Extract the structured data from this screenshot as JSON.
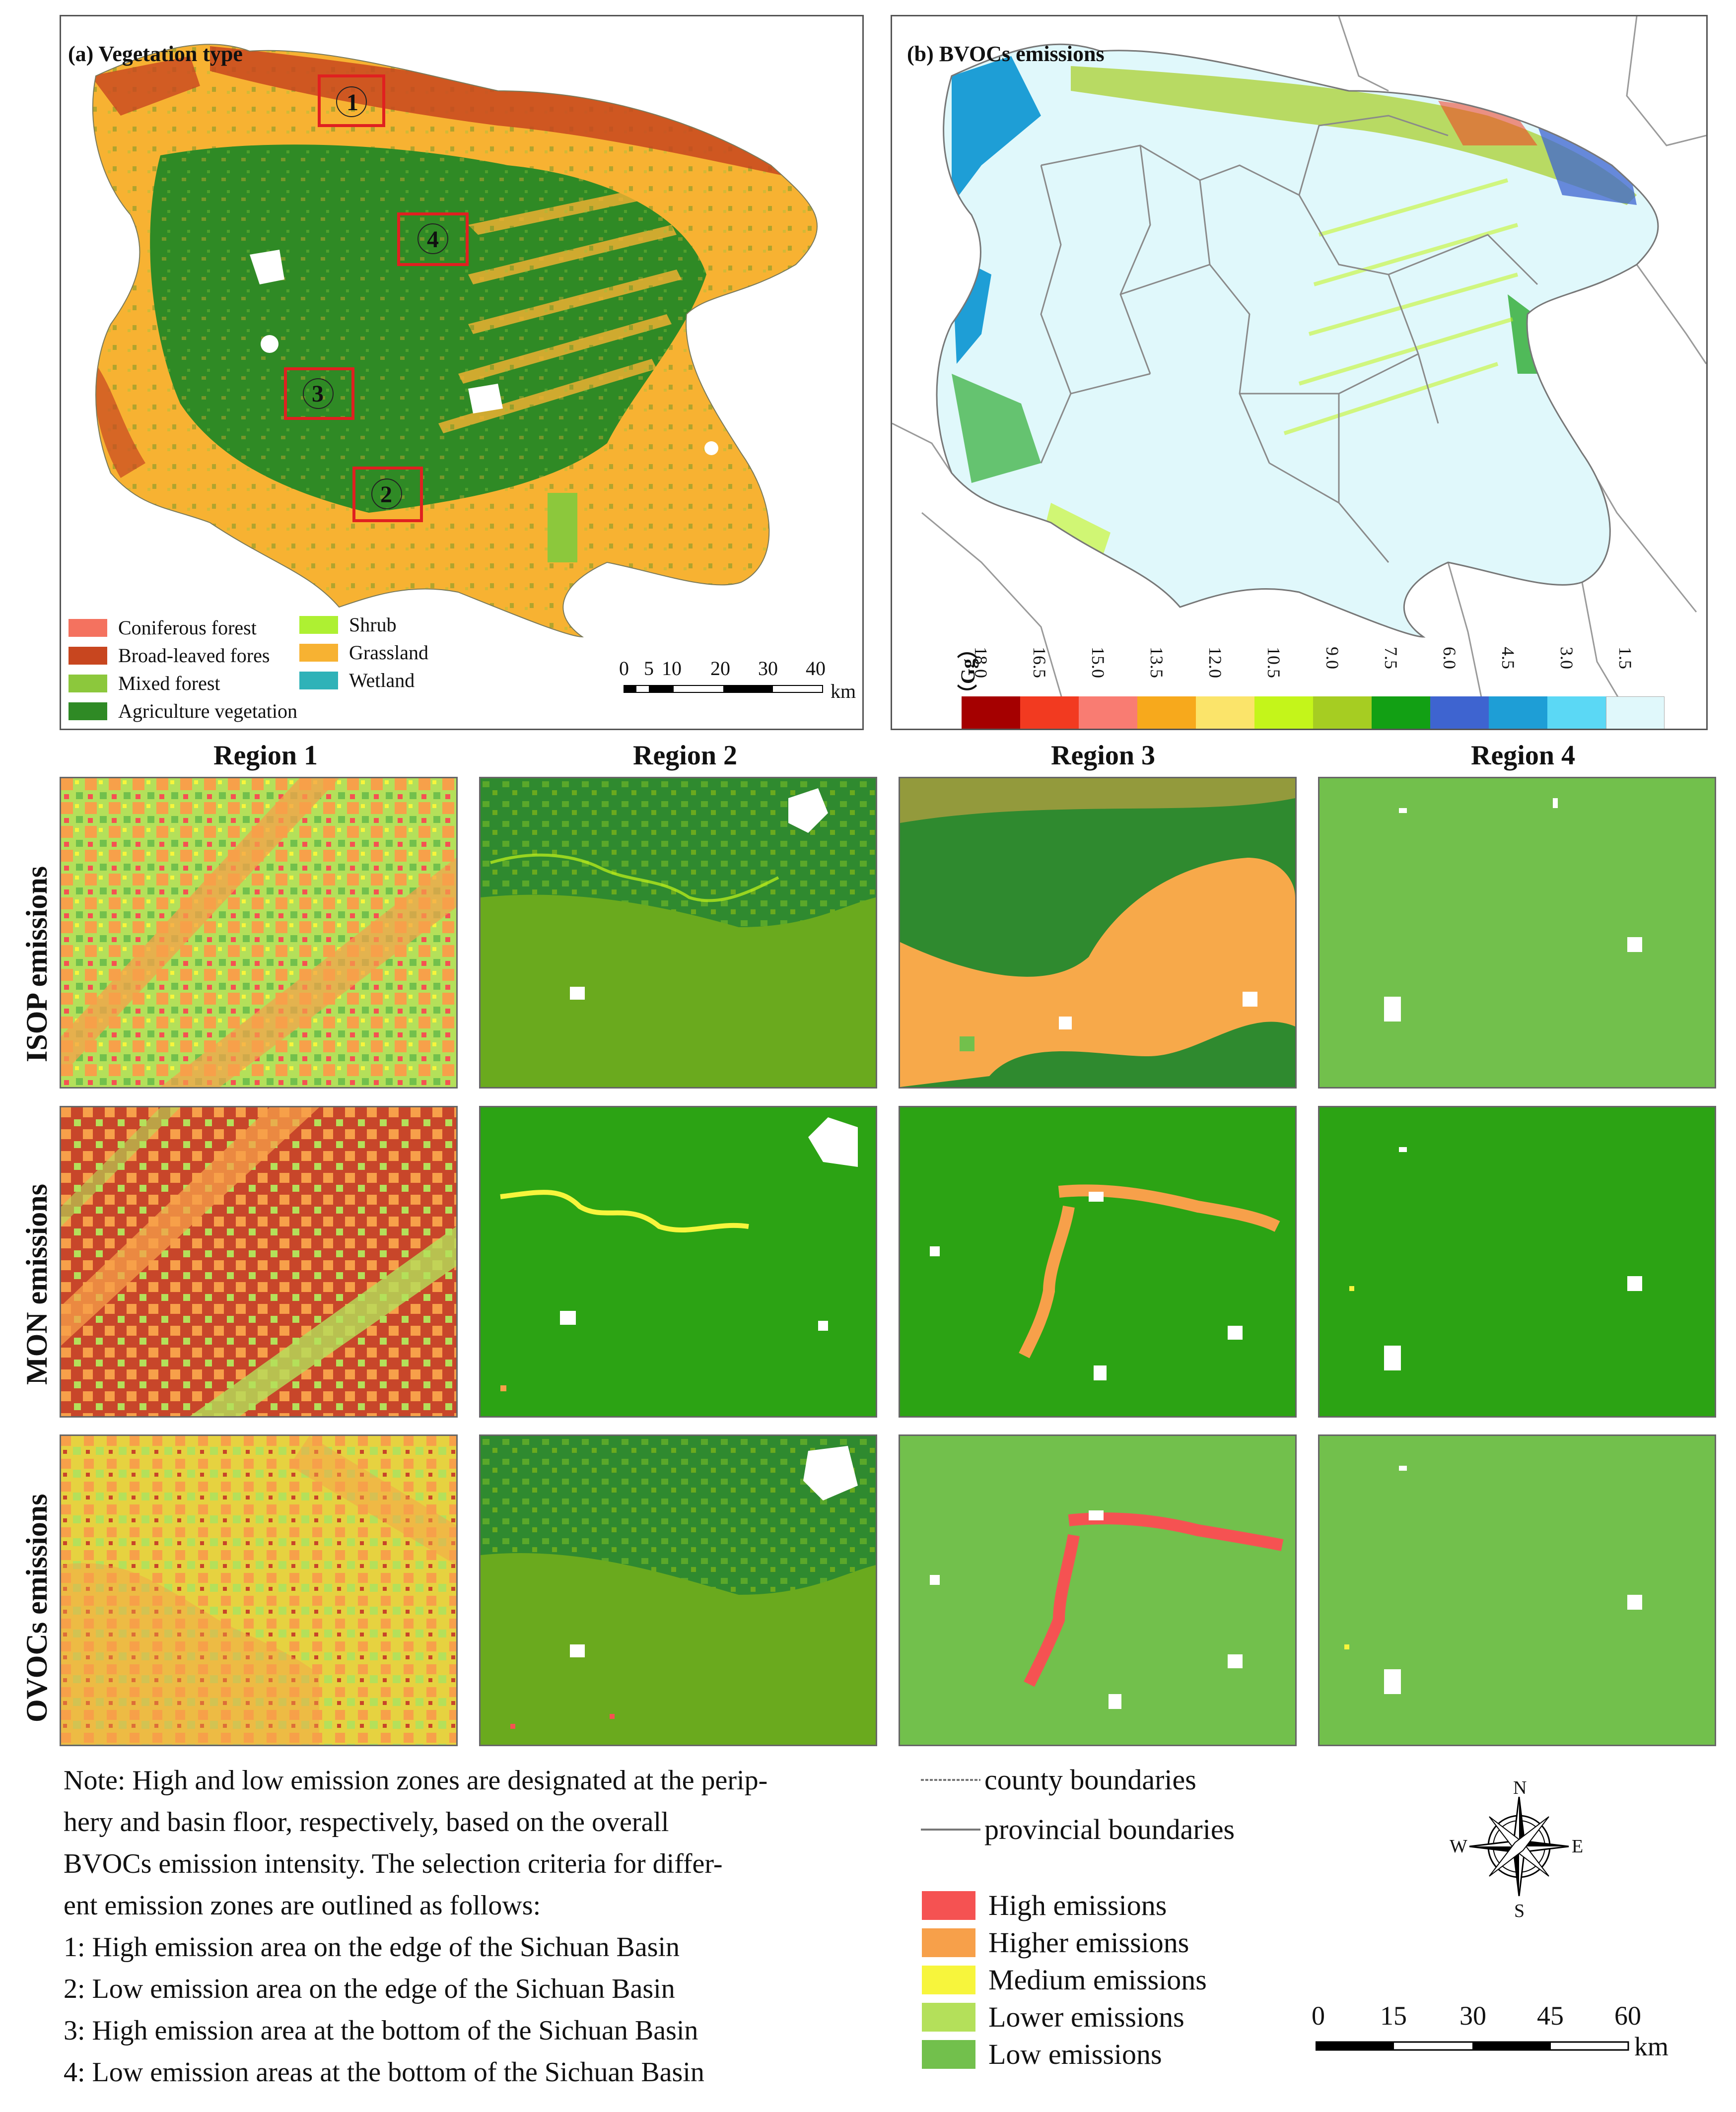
{
  "panel_a": {
    "title": "(a) Vegetation type",
    "region_markers": [
      "1",
      "2",
      "3",
      "4"
    ],
    "legend": [
      {
        "label": "Coniferous forest",
        "color": "#f4725f"
      },
      {
        "label": "Broad-leaved fores",
        "color": "#c8461f"
      },
      {
        "label": "Mixed forest",
        "color": "#8cc83c"
      },
      {
        "label": "Agriculture vegetation",
        "color": "#2f8a25"
      },
      {
        "label": "Shrub",
        "color": "#aef032"
      },
      {
        "label": "Grassland",
        "color": "#f7b232"
      },
      {
        "label": "Wetland",
        "color": "#2fb2b8"
      }
    ],
    "scalebar": {
      "ticks": [
        "0",
        "5",
        "10",
        "20",
        "30",
        "40"
      ],
      "unit": "km"
    }
  },
  "panel_b": {
    "title": "(b) BVOCs emissions",
    "colorbar_unit": "（Gg）",
    "colorbar": [
      {
        "label": "18.0",
        "color": "#a50000"
      },
      {
        "label": "16.5",
        "color": "#f23a20"
      },
      {
        "label": "15.0",
        "color": "#f97c72"
      },
      {
        "label": "13.5",
        "color": "#f7a91c"
      },
      {
        "label": "12.0",
        "color": "#fbe46a"
      },
      {
        "label": "10.5",
        "color": "#c4f51a"
      },
      {
        "label": "9.0",
        "color": "#a6cd22"
      },
      {
        "label": "7.5",
        "color": "#12a014"
      },
      {
        "label": "6.0",
        "color": "#3e64d0"
      },
      {
        "label": "4.5",
        "color": "#1e9ed6"
      },
      {
        "label": "3.0",
        "color": "#5bd8f5"
      },
      {
        "label": "1.5",
        "color": "#e0f8fb"
      }
    ]
  },
  "grid": {
    "columns": [
      "Region 1",
      "Region 2",
      "Region 3",
      "Region 4"
    ],
    "rows": [
      "ISOP emissions",
      "MON emissions",
      "OVOCs emissions"
    ]
  },
  "note": {
    "lines": [
      "Note: High and low emission zones are designated at the perip-",
      "hery and basin floor, respectively, based on the overall",
      "BVOCs emission intensity. The selection criteria for differ-",
      "ent emission zones are outlined as follows:",
      "1: High emission area on the edge of the Sichuan Basin",
      "2: Low emission area on the edge of the Sichuan Basin",
      "3: High emission area at the bottom of the Sichuan Basin",
      "4: Low emission areas at the bottom of the Sichuan Basin"
    ]
  },
  "boundaries": {
    "county": "county boundaries",
    "provincial": "provincial boundaries"
  },
  "emission_legend": [
    {
      "label": "High emissions",
      "color": "#f55252"
    },
    {
      "label": "Higher emissions",
      "color": "#f7a04a"
    },
    {
      "label": "Medium emissions",
      "color": "#f7f53c"
    },
    {
      "label": "Lower emissions",
      "color": "#b4e05a"
    },
    {
      "label": "Low emissions",
      "color": "#72c04c"
    }
  ],
  "compass": {
    "n": "N",
    "s": "S",
    "e": "E",
    "w": "W"
  },
  "scalebar_bottom": {
    "ticks": [
      "0",
      "15",
      "30",
      "45",
      "60"
    ],
    "unit": "km"
  }
}
